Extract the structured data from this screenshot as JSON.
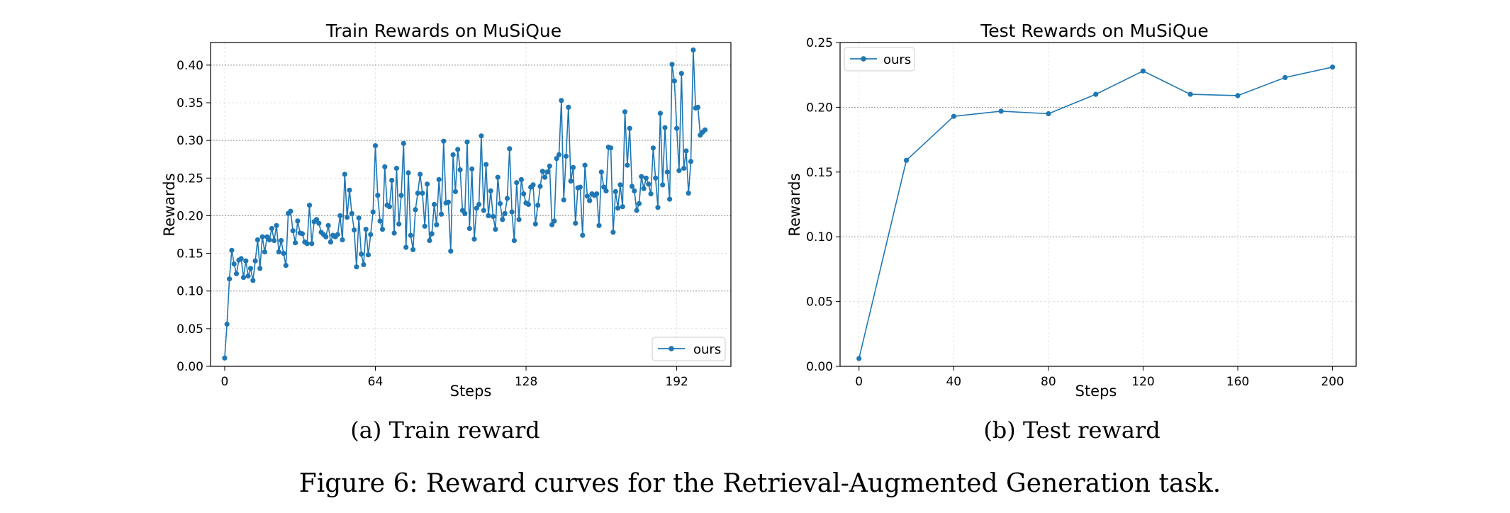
{
  "figure_caption": "Figure 6: Reward curves for the Retrieval-Augmented Generation task.",
  "colors": {
    "series": "#1f77b4",
    "grid": "#888888",
    "frame": "#000000"
  },
  "chart_data": [
    {
      "type": "line",
      "title": "Train Rewards on MuSiQue",
      "caption": "(a) Train reward",
      "xlabel": "Steps",
      "ylabel": "Rewards",
      "xlim": [
        -6,
        215
      ],
      "ylim": [
        0.0,
        0.43
      ],
      "xticks": [
        0,
        64,
        128,
        192
      ],
      "yticks": [
        0.0,
        0.05,
        0.1,
        0.15,
        0.2,
        0.25,
        0.3,
        0.35,
        0.4
      ],
      "legend_position": "lower-right",
      "grid": true,
      "series": [
        {
          "name": "ours",
          "x": [
            0,
            1,
            2,
            3,
            4,
            5,
            6,
            7,
            8,
            9,
            10,
            11,
            12,
            13,
            14,
            15,
            16,
            17,
            18,
            19,
            20,
            21,
            22,
            23,
            24,
            25,
            26,
            27,
            28,
            29,
            30,
            31,
            32,
            33,
            34,
            35,
            36,
            37,
            38,
            39,
            40,
            41,
            42,
            43,
            44,
            45,
            46,
            47,
            48,
            49,
            50,
            51,
            52,
            53,
            54,
            55,
            56,
            57,
            58,
            59,
            60,
            61,
            62,
            63,
            64,
            65,
            66,
            67,
            68,
            69,
            70,
            71,
            72,
            73,
            74,
            75,
            76,
            77,
            78,
            79,
            80,
            81,
            82,
            83,
            84,
            85,
            86,
            87,
            88,
            89,
            90,
            91,
            92,
            93,
            94,
            95,
            96,
            97,
            98,
            99,
            100,
            101,
            102,
            103,
            104,
            105,
            106,
            107,
            108,
            109,
            110,
            111,
            112,
            113,
            114,
            115,
            116,
            117,
            118,
            119,
            120,
            121,
            122,
            123,
            124,
            125,
            126,
            127,
            128,
            129,
            130,
            131,
            132,
            133,
            134,
            135,
            136,
            137,
            138,
            139,
            140,
            141,
            142,
            143,
            144,
            145,
            146,
            147,
            148,
            149,
            150,
            151,
            152,
            153,
            154,
            155,
            156,
            157,
            158,
            159,
            160,
            161,
            162,
            163,
            164,
            165,
            166,
            167,
            168,
            169,
            170,
            171,
            172,
            173,
            174,
            175,
            176,
            177,
            178,
            179,
            180,
            181,
            182,
            183,
            184,
            185,
            186,
            187,
            188,
            189,
            190,
            191,
            192,
            193,
            194,
            195,
            196,
            197,
            198,
            199,
            200,
            201,
            202,
            203,
            204
          ],
          "values": [
            0.011,
            0.056,
            0.116,
            0.154,
            0.136,
            0.123,
            0.141,
            0.143,
            0.118,
            0.14,
            0.12,
            0.13,
            0.114,
            0.14,
            0.168,
            0.13,
            0.172,
            0.152,
            0.172,
            0.168,
            0.183,
            0.167,
            0.187,
            0.152,
            0.167,
            0.15,
            0.134,
            0.203,
            0.206,
            0.18,
            0.164,
            0.193,
            0.177,
            0.176,
            0.165,
            0.163,
            0.214,
            0.163,
            0.192,
            0.195,
            0.19,
            0.178,
            0.175,
            0.172,
            0.187,
            0.165,
            0.174,
            0.172,
            0.175,
            0.2,
            0.168,
            0.255,
            0.198,
            0.234,
            0.203,
            0.181,
            0.132,
            0.197,
            0.149,
            0.135,
            0.182,
            0.148,
            0.175,
            0.205,
            0.293,
            0.227,
            0.193,
            0.182,
            0.265,
            0.214,
            0.212,
            0.247,
            0.177,
            0.263,
            0.189,
            0.227,
            0.296,
            0.158,
            0.257,
            0.174,
            0.155,
            0.208,
            0.23,
            0.255,
            0.23,
            0.186,
            0.242,
            0.167,
            0.176,
            0.215,
            0.188,
            0.248,
            0.202,
            0.299,
            0.217,
            0.218,
            0.153,
            0.281,
            0.232,
            0.288,
            0.261,
            0.207,
            0.203,
            0.298,
            0.183,
            0.262,
            0.169,
            0.21,
            0.215,
            0.306,
            0.207,
            0.268,
            0.2,
            0.233,
            0.199,
            0.182,
            0.251,
            0.216,
            0.195,
            0.203,
            0.223,
            0.289,
            0.205,
            0.167,
            0.244,
            0.195,
            0.248,
            0.229,
            0.217,
            0.215,
            0.238,
            0.241,
            0.189,
            0.214,
            0.239,
            0.259,
            0.251,
            0.258,
            0.266,
            0.188,
            0.193,
            0.276,
            0.281,
            0.353,
            0.221,
            0.279,
            0.344,
            0.246,
            0.264,
            0.19,
            0.237,
            0.238,
            0.174,
            0.267,
            0.226,
            0.22,
            0.229,
            0.227,
            0.229,
            0.187,
            0.258,
            0.238,
            0.233,
            0.291,
            0.29,
            0.178,
            0.232,
            0.21,
            0.241,
            0.212,
            0.338,
            0.267,
            0.316,
            0.239,
            0.233,
            0.207,
            0.216,
            0.252,
            0.236,
            0.25,
            0.242,
            0.229,
            0.29,
            0.25,
            0.211,
            0.336,
            0.241,
            0.317,
            0.258,
            0.222,
            0.401,
            0.379,
            0.316,
            0.26,
            0.389,
            0.263,
            0.286,
            0.23,
            0.272,
            0.42,
            0.343,
            0.344,
            0.307,
            0.311,
            0.314
          ]
        }
      ]
    },
    {
      "type": "line",
      "title": "Test Rewards on MuSiQue",
      "caption": "(b) Test reward",
      "xlabel": "Steps",
      "ylabel": "Rewards",
      "xlim": [
        -8,
        210
      ],
      "ylim": [
        0.0,
        0.25
      ],
      "xticks": [
        0,
        40,
        80,
        120,
        160,
        200
      ],
      "yticks": [
        0.0,
        0.05,
        0.1,
        0.15,
        0.2,
        0.25
      ],
      "legend_position": "top-left",
      "grid": true,
      "series": [
        {
          "name": "ours",
          "x": [
            0,
            20,
            40,
            60,
            80,
            100,
            120,
            140,
            160,
            180,
            200
          ],
          "values": [
            0.006,
            0.159,
            0.193,
            0.197,
            0.195,
            0.21,
            0.228,
            0.21,
            0.209,
            0.223,
            0.231
          ]
        }
      ]
    }
  ]
}
